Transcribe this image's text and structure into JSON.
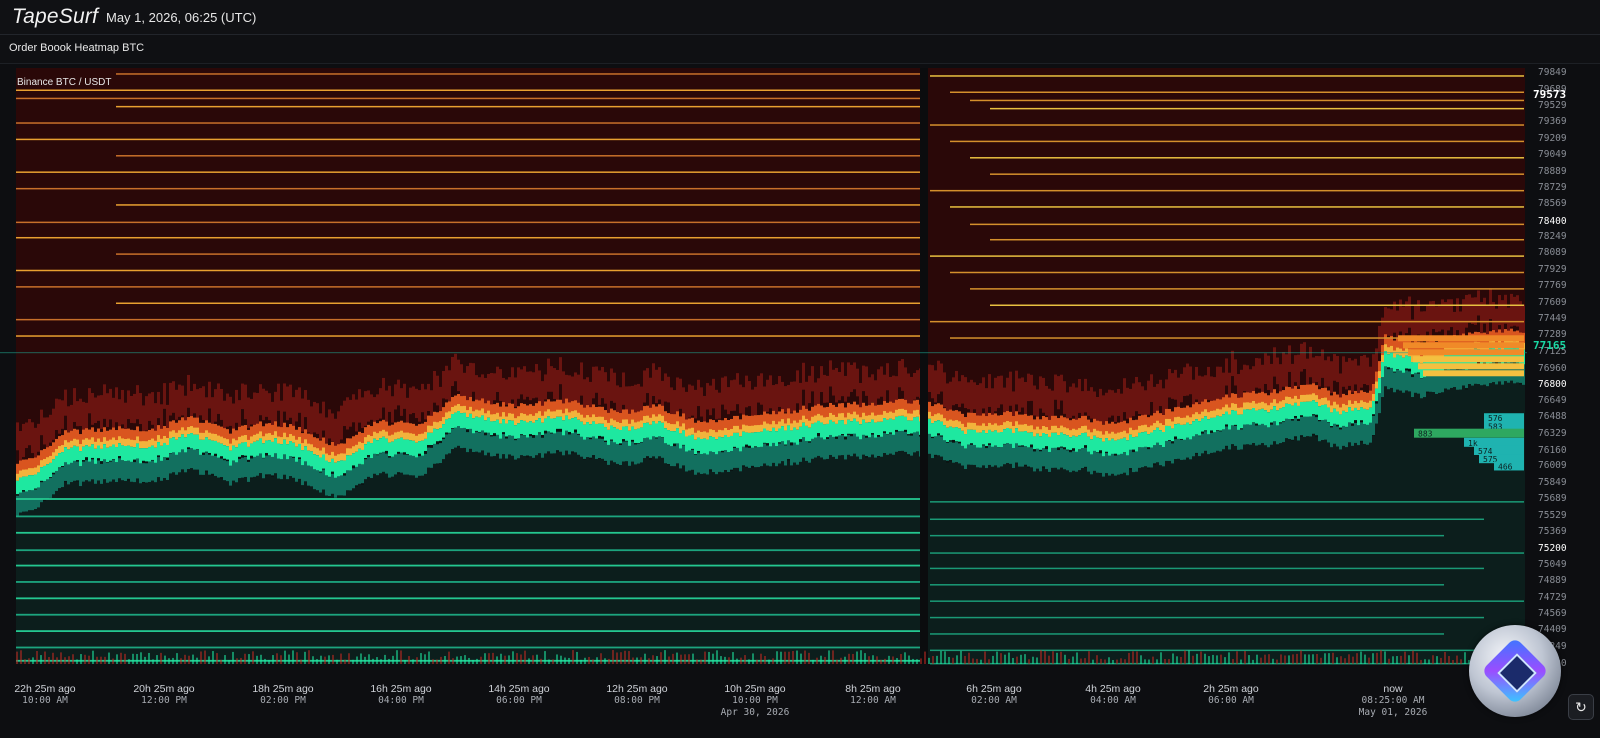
{
  "header": {
    "logo": "TapeSurf",
    "datetime": "May 1, 2026, 06:25 (UTC)"
  },
  "chart": {
    "title": "Order Boook Heatmap BTC",
    "pair_label": "Binance BTC / USDT"
  },
  "chart_data": {
    "type": "heatmap",
    "title": "Order Boook Heatmap BTC",
    "subtitle": "Binance BTC / USDT",
    "xlabel": "",
    "ylabel": "",
    "ylim": [
      74080,
      79900
    ],
    "y_ticks": [
      79849,
      79689,
      79529,
      79369,
      79209,
      79049,
      78889,
      78729,
      78569,
      78400,
      78249,
      78089,
      77929,
      77769,
      77609,
      77449,
      77289,
      77125,
      76960,
      76800,
      76649,
      76488,
      76329,
      76160,
      76009,
      75849,
      75689,
      75529,
      75369,
      75200,
      75049,
      74889,
      74729,
      74569,
      74409,
      74249,
      74080
    ],
    "y_tick_labels": [
      "79849",
      "79689",
      "79529",
      "79369",
      "79209",
      "79049",
      "78889",
      "78729",
      "78569",
      "78400",
      "78249",
      "78089",
      "77929",
      "77769",
      "77609",
      "77449",
      "77289",
      "77125",
      "76960",
      "76800",
      "76649",
      "76488",
      "76329",
      "76160",
      "76009",
      "75849",
      "75689",
      "75529",
      "75369",
      "75200",
      "75049",
      "74889",
      "74729",
      "74569",
      "74409",
      "74249",
      "74080"
    ],
    "highlighted_ticks": [
      "78400",
      "76800",
      "75200"
    ],
    "last_price_labels": [
      "79573",
      "77165"
    ],
    "x_ticks": [
      {
        "ago": "22h 25m ago",
        "time": "10:00 AM",
        "date": ""
      },
      {
        "ago": "20h 25m ago",
        "time": "12:00 PM",
        "date": ""
      },
      {
        "ago": "18h 25m ago",
        "time": "02:00 PM",
        "date": ""
      },
      {
        "ago": "16h 25m ago",
        "time": "04:00 PM",
        "date": ""
      },
      {
        "ago": "14h 25m ago",
        "time": "06:00 PM",
        "date": ""
      },
      {
        "ago": "12h 25m ago",
        "time": "08:00 PM",
        "date": ""
      },
      {
        "ago": "10h 25m ago",
        "time": "10:00 PM",
        "date": "Apr 30, 2026"
      },
      {
        "ago": "8h 25m ago",
        "time": "12:00 AM",
        "date": ""
      },
      {
        "ago": "6h 25m ago",
        "time": "02:00 AM",
        "date": ""
      },
      {
        "ago": "4h 25m ago",
        "time": "04:00 AM",
        "date": ""
      },
      {
        "ago": "2h 25m ago",
        "time": "06:00 AM",
        "date": ""
      },
      {
        "ago": "now",
        "time": "08:25:00 AM",
        "date": "May 01, 2026"
      }
    ],
    "price_path": {
      "x_hours_ago": [
        22.4,
        21.9,
        21.2,
        20.5,
        20.0,
        19.4,
        18.8,
        18.4,
        17.8,
        17.2,
        16.6,
        16.4,
        16.0,
        15.2,
        14.4,
        13.6,
        13.0,
        12.4,
        11.8,
        11.2,
        10.6,
        10.0,
        9.4,
        8.8,
        8.4,
        7.8,
        7.2,
        6.6,
        6.2,
        5.4,
        4.6,
        3.8,
        3.2,
        2.8,
        2.3,
        2.1,
        1.6,
        1.0,
        0.5
      ],
      "y_price": [
        75850,
        76130,
        76160,
        76170,
        76270,
        76140,
        76230,
        76170,
        75990,
        76230,
        76200,
        76290,
        76490,
        76380,
        76440,
        76320,
        76380,
        76240,
        76270,
        76320,
        76380,
        76400,
        76430,
        76400,
        76290,
        76320,
        76270,
        76270,
        76210,
        76330,
        76470,
        76520,
        76590,
        76490,
        76550,
        77060,
        76990,
        77060,
        77125
      ]
    },
    "depth_labels": [
      "576",
      "583",
      "883",
      "1k",
      "574",
      "575",
      "466"
    ],
    "colors": {
      "background": "#0d0e11",
      "ask_low": "#3a0a0a",
      "ask_mid": "#b8261a",
      "ask_high": "#f2b33c",
      "bid_low": "#0f2a26",
      "bid_mid": "#158f7a",
      "bid_high": "#1ee8a0"
    },
    "grid": false
  },
  "controls": {
    "refresh_icon": "refresh-icon"
  }
}
